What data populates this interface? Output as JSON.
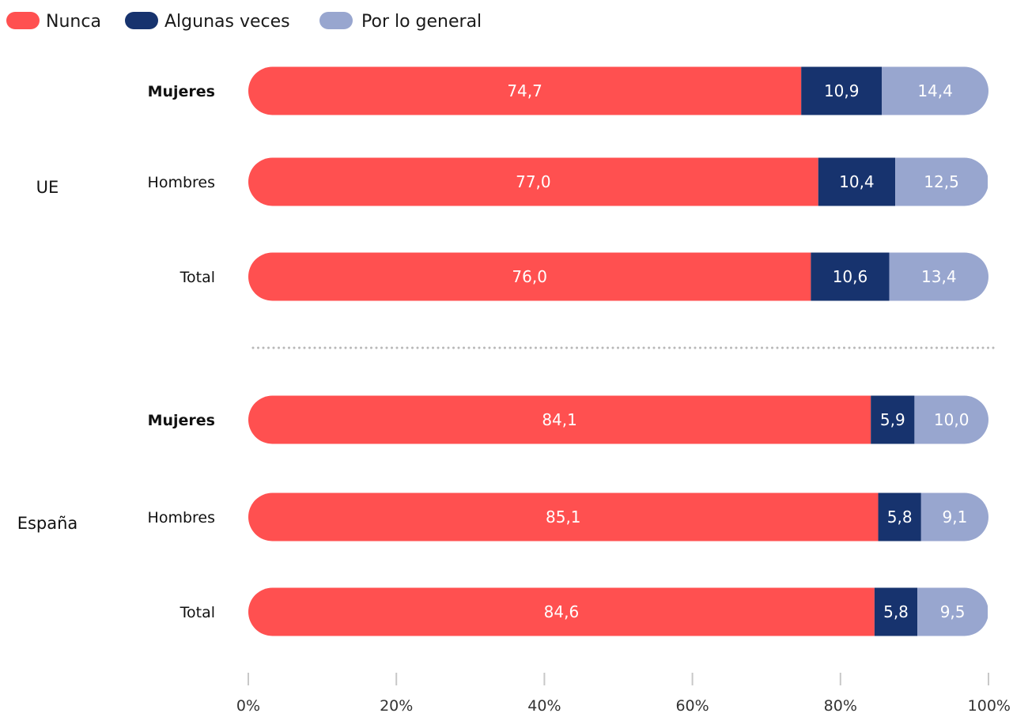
{
  "chart_data": {
    "type": "bar",
    "orientation": "horizontal",
    "stacked": true,
    "legend": {
      "placement": "top-left"
    },
    "colors": {
      "Nunca": "#FF5050",
      "Algunas veces": "#17336E",
      "Por lo general": "#98A6CF"
    },
    "series_names": [
      "Nunca",
      "Algunas veces",
      "Por lo general"
    ],
    "groups": [
      {
        "label": "UE",
        "rows": [
          {
            "label": "Mujeres",
            "bold": true,
            "values": [
              74.7,
              10.9,
              14.4
            ],
            "labels": [
              "74,7",
              "10,9",
              "14,4"
            ]
          },
          {
            "label": "Hombres",
            "bold": false,
            "values": [
              77.0,
              10.4,
              12.5
            ],
            "labels": [
              "77,0",
              "10,4",
              "12,5"
            ]
          },
          {
            "label": "Total",
            "bold": false,
            "values": [
              76.0,
              10.6,
              13.4
            ],
            "labels": [
              "76,0",
              "10,6",
              "13,4"
            ]
          }
        ]
      },
      {
        "label": "España",
        "rows": [
          {
            "label": "Mujeres",
            "bold": true,
            "values": [
              84.1,
              5.9,
              10.0
            ],
            "labels": [
              "84,1",
              "5,9",
              "10,0"
            ]
          },
          {
            "label": "Hombres",
            "bold": false,
            "values": [
              85.1,
              5.8,
              9.1
            ],
            "labels": [
              "85,1",
              "5,8",
              "9,1"
            ]
          },
          {
            "label": "Total",
            "bold": false,
            "values": [
              84.6,
              5.8,
              9.5
            ],
            "labels": [
              "84,6",
              "5,8",
              "9,5"
            ]
          }
        ]
      }
    ],
    "xlim": [
      0,
      100
    ],
    "x_ticks": [
      0,
      20,
      40,
      60,
      80,
      100
    ],
    "x_tick_labels": [
      "0%",
      "20%",
      "40%",
      "60%",
      "80%",
      "100%"
    ],
    "group_separator": "dotted"
  }
}
